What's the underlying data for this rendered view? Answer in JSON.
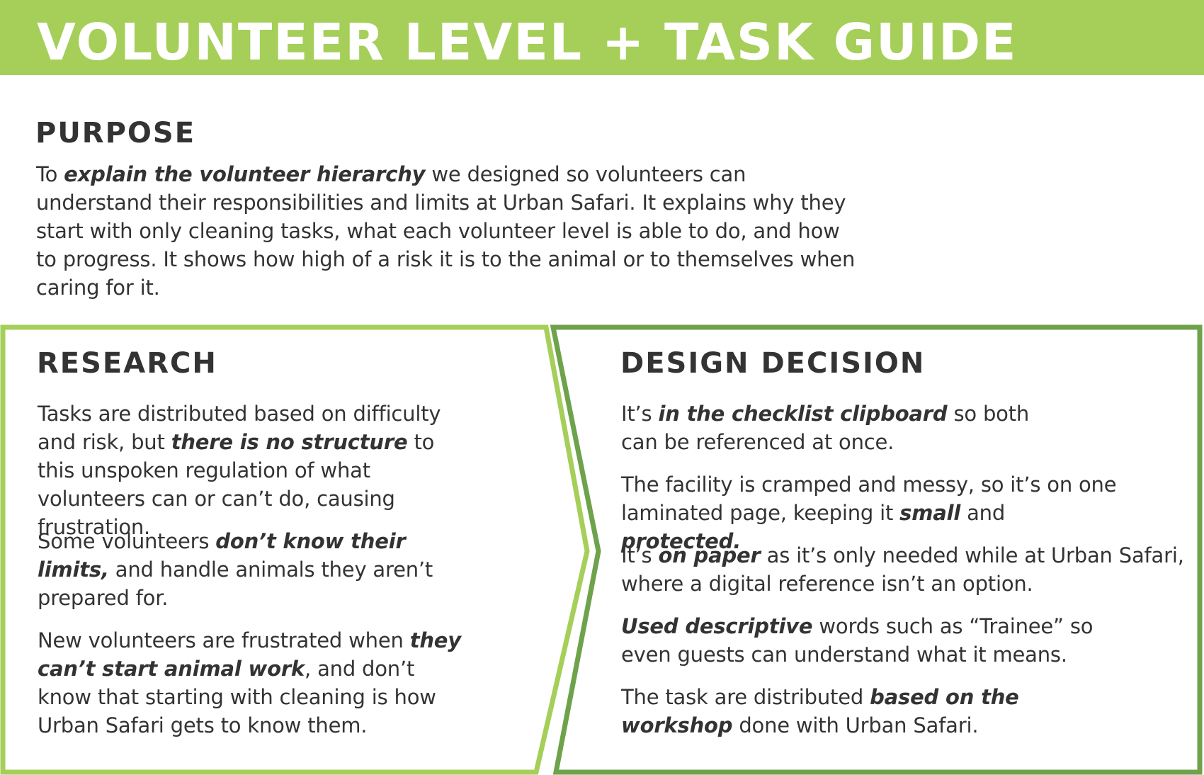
{
  "colors": {
    "title_bg": "#a5cf59",
    "light_green": "#a5cf59",
    "dark_green": "#6ea24b"
  },
  "title": "VOLUNTEER LEVEL + TASK GUIDE",
  "purpose": {
    "heading": "PURPOSE",
    "text": [
      {
        "t": "To "
      },
      {
        "t": "explain the volunteer hierarchy",
        "em": true
      },
      {
        "t": " we designed so volunteers can understand their responsibilities and limits at Urban Safari. It explains why they start with only cleaning tasks, what each volunteer level is able to do, and how to progress. It shows how high of a risk it is to the animal or to themselves when caring for it."
      }
    ]
  },
  "research": {
    "heading": "RESEARCH",
    "paragraphs": [
      [
        {
          "t": "Tasks are distributed based on difficulty and risk, but "
        },
        {
          "t": "there is no structure",
          "em": true
        },
        {
          "t": " to this unspoken regulation of what volunteers can or can’t do, causing frustration."
        }
      ],
      [
        {
          "t": "Some volunteers "
        },
        {
          "t": "don’t know their limits,",
          "em": true
        },
        {
          "t": " and handle animals they aren’t prepared for."
        }
      ],
      [
        {
          "t": "New volunteers are frustrated when "
        },
        {
          "t": "they can’t start animal work",
          "em": true
        },
        {
          "t": ", and don’t know that starting with cleaning is how Urban Safari gets to know them."
        }
      ]
    ]
  },
  "design": {
    "heading": "DESIGN DECISION",
    "paragraphs": [
      [
        {
          "t": "It’s "
        },
        {
          "t": "in the checklist clipboard",
          "em": true
        },
        {
          "t": " so both can be referenced at once."
        }
      ],
      [
        {
          "t": "The facility is cramped and messy, so it’s on one laminated page, keeping it "
        },
        {
          "t": "small",
          "em": true
        },
        {
          "t": " and "
        },
        {
          "t": "protected.",
          "em": true
        }
      ],
      [
        {
          "t": "It’s "
        },
        {
          "t": "on paper",
          "em": true
        },
        {
          "t": " as it’s only needed while at Urban Safari, where a digital reference isn’t an option."
        }
      ],
      [
        {
          "t": "Used descriptive",
          "em": true
        },
        {
          "t": " words such as “Trainee” so even guests can understand what it means."
        }
      ],
      [
        {
          "t": "The task are distributed "
        },
        {
          "t": "based on the workshop",
          "em": true
        },
        {
          "t": " done with Urban Safari."
        }
      ]
    ]
  }
}
